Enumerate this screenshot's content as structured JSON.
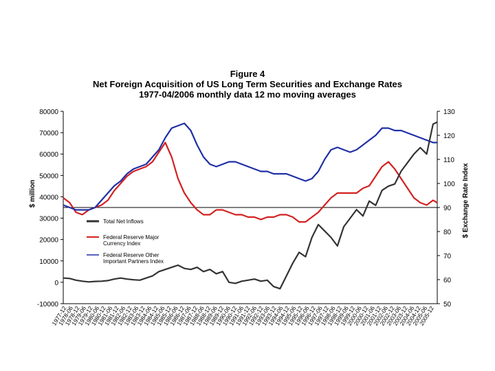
{
  "chart_data": {
    "type": "line",
    "title": "Figure 4",
    "subtitle_line1": "Net Foreign Acquisition of US Long Term Securities and Exchange Rates",
    "subtitle_line2": "1977-04/2006 monthly data 12 mo moving averages",
    "ylabel_left": "$ million",
    "ylabel_right": "$ Exchange Rate Index",
    "ylim_left": [
      -10000,
      80000
    ],
    "yticks_left": [
      "-10000",
      "0",
      "10000",
      "20000",
      "30000",
      "40000",
      "50000",
      "60000",
      "70000",
      "80000"
    ],
    "ylim_right": [
      50,
      130
    ],
    "yticks_right": [
      "50",
      "60",
      "70",
      "80",
      "90",
      "100",
      "110",
      "120",
      "130"
    ],
    "x_range": [
      1977.0,
      2006.33
    ],
    "xtick_labels": [
      "1977-12",
      "1978-06",
      "1978-12",
      "1979-06",
      "1979-12",
      "1980-06",
      "1980-12",
      "1981-06",
      "1981-12",
      "1982-06",
      "1982-12",
      "1983-06",
      "1983-12",
      "1984-06",
      "1984-12",
      "1985-06",
      "1985-12",
      "1986-06",
      "1986-12",
      "1987-06",
      "1987-12",
      "1988-06",
      "1988-12",
      "1989-06",
      "1989-12",
      "1990-06",
      "1990-12",
      "1991-06",
      "1991-12",
      "1992-06",
      "1992-12",
      "1993-06",
      "1993-12",
      "1994-06",
      "1994-12",
      "1995-06",
      "1995-12",
      "1996-06",
      "1996-12",
      "1997-06",
      "1997-12",
      "1998-06",
      "1998-12",
      "1999-06",
      "1999-12",
      "2000-06",
      "2000-12",
      "2001-06",
      "2001-12",
      "2002-06",
      "2002-12",
      "2003-06",
      "2003-12",
      "2004-06",
      "2004-12",
      "2005-06",
      "2005-12"
    ],
    "reference_line_right": 90,
    "series": [
      {
        "name": "Total Net Inflows",
        "axis": "left",
        "color": "#333333",
        "x": [
          1977.0,
          1977.5,
          1978.0,
          1978.5,
          1979.0,
          1979.5,
          1980.0,
          1980.5,
          1981.0,
          1981.5,
          1982.0,
          1982.5,
          1983.0,
          1983.5,
          1984.0,
          1984.5,
          1985.0,
          1985.5,
          1986.0,
          1986.5,
          1987.0,
          1987.5,
          1988.0,
          1988.5,
          1989.0,
          1989.5,
          1990.0,
          1990.5,
          1991.0,
          1991.5,
          1992.0,
          1992.5,
          1993.0,
          1993.5,
          1994.0,
          1994.5,
          1995.0,
          1995.5,
          1996.0,
          1996.5,
          1997.0,
          1997.5,
          1998.0,
          1998.5,
          1999.0,
          1999.5,
          2000.0,
          2000.5,
          2001.0,
          2001.5,
          2002.0,
          2002.5,
          2003.0,
          2003.5,
          2004.0,
          2004.5,
          2005.0,
          2005.5,
          2006.0,
          2006.33
        ],
        "values": [
          2000,
          1800,
          1000,
          500,
          200,
          400,
          500,
          800,
          1500,
          2000,
          1500,
          1200,
          1000,
          2000,
          3000,
          5000,
          6000,
          7000,
          8000,
          6500,
          6000,
          7000,
          5000,
          6000,
          4000,
          5000,
          0,
          -500,
          500,
          1000,
          1500,
          500,
          1000,
          -2000,
          -3000,
          3000,
          9000,
          14000,
          12000,
          21000,
          27000,
          24000,
          21000,
          17000,
          26000,
          30000,
          34000,
          31000,
          38000,
          36000,
          43000,
          45000,
          46000,
          52000,
          56000,
          60000,
          63000,
          60000,
          74000,
          75000
        ]
      },
      {
        "name": "Federal Reserve Major Currency Index",
        "axis": "right",
        "color": "#d42020",
        "x": [
          1977.0,
          1977.5,
          1978.0,
          1978.5,
          1979.0,
          1979.5,
          1980.0,
          1980.5,
          1981.0,
          1981.5,
          1982.0,
          1982.5,
          1983.0,
          1983.5,
          1984.0,
          1984.5,
          1985.0,
          1985.5,
          1986.0,
          1986.5,
          1987.0,
          1987.5,
          1988.0,
          1988.5,
          1989.0,
          1989.5,
          1990.0,
          1990.5,
          1991.0,
          1991.5,
          1992.0,
          1992.5,
          1993.0,
          1993.5,
          1994.0,
          1994.5,
          1995.0,
          1995.5,
          1996.0,
          1996.5,
          1997.0,
          1997.5,
          1998.0,
          1998.5,
          1999.0,
          1999.5,
          2000.0,
          2000.5,
          2001.0,
          2001.5,
          2002.0,
          2002.5,
          2003.0,
          2003.5,
          2004.0,
          2004.5,
          2005.0,
          2005.5,
          2006.0,
          2006.33
        ],
        "values": [
          94,
          92,
          88,
          87,
          89,
          90,
          91,
          93,
          97,
          100,
          103,
          105,
          106,
          107,
          109,
          113,
          117,
          111,
          102,
          96,
          92,
          89,
          87,
          87,
          89,
          89,
          88,
          87,
          87,
          86,
          86,
          85,
          86,
          86,
          87,
          87,
          86,
          84,
          84,
          86,
          88,
          91,
          94,
          96,
          96,
          96,
          96,
          98,
          99,
          103,
          107,
          109,
          106,
          102,
          98,
          94,
          92,
          91,
          93,
          92
        ]
      },
      {
        "name": "Federal Reserve Other Important Partners Index",
        "axis": "right",
        "color": "#1f2fa6",
        "x": [
          1977.0,
          1977.5,
          1978.0,
          1978.5,
          1979.0,
          1979.5,
          1980.0,
          1980.5,
          1981.0,
          1981.5,
          1982.0,
          1982.5,
          1983.0,
          1983.5,
          1984.0,
          1984.5,
          1985.0,
          1985.5,
          1986.0,
          1986.5,
          1987.0,
          1987.5,
          1988.0,
          1988.5,
          1989.0,
          1989.5,
          1990.0,
          1990.5,
          1991.0,
          1991.5,
          1992.0,
          1992.5,
          1993.0,
          1993.5,
          1994.0,
          1994.5,
          1995.0,
          1995.5,
          1996.0,
          1996.5,
          1997.0,
          1997.5,
          1998.0,
          1998.5,
          1999.0,
          1999.5,
          2000.0,
          2000.5,
          2001.0,
          2001.5,
          2002.0,
          2002.5,
          2003.0,
          2003.5,
          2004.0,
          2004.5,
          2005.0,
          2005.5,
          2006.0,
          2006.33
        ],
        "values": [
          91,
          90,
          89,
          89,
          89,
          90,
          93,
          96,
          99,
          101,
          104,
          106,
          107,
          108,
          111,
          114,
          119,
          123,
          124,
          125,
          122,
          116,
          111,
          108,
          107,
          108,
          109,
          109,
          108,
          107,
          106,
          105,
          105,
          104,
          104,
          104,
          103,
          102,
          101,
          102,
          105,
          110,
          114,
          115,
          114,
          113,
          114,
          116,
          118,
          120,
          123,
          123,
          122,
          122,
          121,
          120,
          119,
          118,
          117,
          117
        ]
      }
    ],
    "legend": [
      {
        "label": "Total Net Inflows",
        "color": "#333333"
      },
      {
        "label_line1": "Federal Reserve Major",
        "label_line2": "Currency Index",
        "color": "#d42020"
      },
      {
        "label_line1": "Federal Reserve Other",
        "label_line2": "Important Partners Index",
        "color": "#1f2fa6"
      }
    ]
  }
}
